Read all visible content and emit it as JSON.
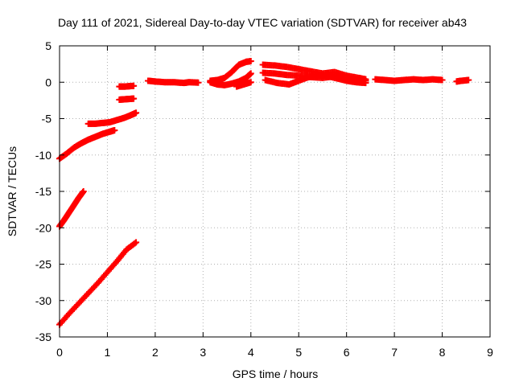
{
  "chart_data": {
    "type": "scatter",
    "title": "Day 111 of 2021, Sidereal Day-to-day VTEC variation (SDTVAR) for receiver ab43",
    "xlabel": "GPS time / hours",
    "ylabel": "SDTVAR / TECUs",
    "xlim": [
      0,
      9
    ],
    "ylim": [
      -35,
      5
    ],
    "x_ticks": [
      0,
      1,
      2,
      3,
      4,
      5,
      6,
      7,
      8,
      9
    ],
    "y_ticks": [
      5,
      0,
      -5,
      -10,
      -15,
      -20,
      -25,
      -30,
      -35
    ],
    "grid": true,
    "marker": "plus",
    "color": "#ff0000",
    "series": [
      {
        "x": [
          0.0,
          0.15,
          0.3,
          0.45,
          0.6,
          0.75,
          0.9,
          1.05,
          1.15
        ],
        "y": [
          -10.5,
          -9.8,
          -9.0,
          -8.4,
          -7.9,
          -7.5,
          -7.1,
          -6.8,
          -6.6
        ]
      },
      {
        "x": [
          0.6,
          0.75,
          0.9,
          1.05,
          1.2,
          1.35,
          1.5,
          1.6
        ],
        "y": [
          -5.7,
          -5.7,
          -5.6,
          -5.5,
          -5.2,
          -4.9,
          -4.5,
          -4.2
        ]
      },
      {
        "x": [
          0.0,
          0.1,
          0.2,
          0.3,
          0.4,
          0.5
        ],
        "y": [
          -19.8,
          -18.9,
          -17.9,
          -16.9,
          -15.9,
          -15.0
        ]
      },
      {
        "x": [
          0.0,
          0.2,
          0.4,
          0.6,
          0.8,
          1.0,
          1.2,
          1.4,
          1.6
        ],
        "y": [
          -33.3,
          -31.8,
          -30.4,
          -29.0,
          -27.6,
          -26.1,
          -24.6,
          -23.0,
          -22.0
        ]
      },
      {
        "x": [
          1.25,
          1.35,
          1.45,
          1.55
        ],
        "y": [
          -0.6,
          -0.6,
          -0.55,
          -0.5
        ]
      },
      {
        "x": [
          1.25,
          1.35,
          1.45,
          1.55
        ],
        "y": [
          -2.4,
          -2.35,
          -2.3,
          -2.25
        ]
      },
      {
        "x": [
          1.85,
          2.0,
          2.2,
          2.4,
          2.6,
          2.7,
          2.9
        ],
        "y": [
          0.2,
          0.1,
          0.0,
          0.0,
          -0.1,
          0.0,
          -0.05
        ]
      },
      {
        "x": [
          3.15,
          3.3,
          3.45,
          3.6,
          3.75,
          3.9,
          4.0
        ],
        "y": [
          0.2,
          0.3,
          0.6,
          1.4,
          2.4,
          2.8,
          2.9
        ]
      },
      {
        "x": [
          3.15,
          3.3,
          3.45,
          3.6,
          3.75,
          3.9,
          4.0
        ],
        "y": [
          0.0,
          -0.3,
          -0.4,
          -0.2,
          0.1,
          0.6,
          1.2
        ]
      },
      {
        "x": [
          3.7,
          3.85,
          4.0
        ],
        "y": [
          -0.6,
          -0.3,
          0.0
        ]
      },
      {
        "x": [
          4.25,
          4.5,
          4.75,
          5.0,
          5.25,
          5.5,
          5.75,
          6.0,
          6.25,
          6.4
        ],
        "y": [
          2.4,
          2.3,
          2.1,
          1.8,
          1.5,
          1.2,
          1.4,
          0.9,
          0.6,
          0.4
        ]
      },
      {
        "x": [
          4.25,
          4.5,
          4.75,
          5.0,
          5.25,
          5.5,
          5.75,
          6.0,
          6.25,
          6.4
        ],
        "y": [
          1.3,
          1.2,
          1.0,
          0.9,
          0.7,
          0.6,
          0.8,
          0.4,
          0.3,
          0.2
        ]
      },
      {
        "x": [
          4.3,
          4.55,
          4.8,
          5.0,
          5.25,
          5.5,
          5.75,
          6.0,
          6.2,
          6.4
        ],
        "y": [
          0.3,
          -0.1,
          -0.3,
          0.2,
          0.8,
          1.0,
          0.6,
          0.2,
          0.0,
          -0.1
        ]
      },
      {
        "x": [
          6.6,
          6.8,
          7.0,
          7.2,
          7.4,
          7.6,
          7.8,
          8.0
        ],
        "y": [
          0.4,
          0.3,
          0.2,
          0.3,
          0.4,
          0.3,
          0.4,
          0.3
        ]
      },
      {
        "x": [
          8.3,
          8.4,
          8.55
        ],
        "y": [
          0.1,
          0.2,
          0.3
        ]
      }
    ]
  }
}
